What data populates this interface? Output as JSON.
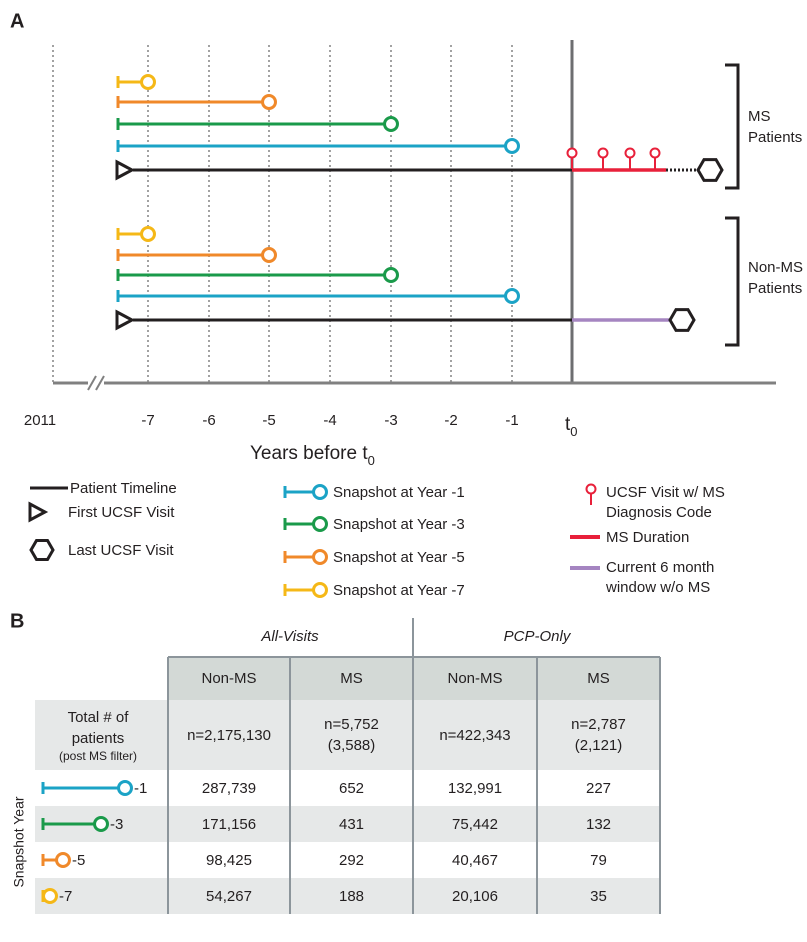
{
  "panel_a": {
    "label": "A",
    "ticks": [
      "2011",
      "-7",
      "-6",
      "-5",
      "-4",
      "-3",
      "-2",
      "-1"
    ],
    "t0_label": {
      "text": "t",
      "subscript": "0"
    },
    "axis_label": {
      "text": "Years before t",
      "subscript": "0"
    },
    "groups": [
      {
        "label": [
          "MS",
          "Patients"
        ]
      },
      {
        "label": [
          "Non-MS",
          "Patients"
        ]
      }
    ],
    "legend": {
      "patient_timeline": "Patient Timeline",
      "first_visit": "First UCSF Visit",
      "last_visit": "Last UCSF Visit",
      "snapshots": [
        "Snapshot at Year -1",
        "Snapshot at Year -3",
        "Snapshot at Year -5",
        "Snapshot at Year -7"
      ],
      "ms_visit": [
        "UCSF Visit w/ MS",
        "Diagnosis Code"
      ],
      "ms_duration": "MS Duration",
      "window": [
        "Current 6 month",
        "window w/o MS"
      ]
    }
  },
  "panel_b": {
    "label": "B",
    "group_headers": [
      "All-Visits",
      "PCP-Only"
    ],
    "column_headers": [
      "Non-MS",
      "MS",
      "Non-MS",
      "MS"
    ],
    "row_axis_label": "Snapshot Year",
    "total_row": {
      "label": [
        "Total # of",
        "patients",
        "(post MS filter)"
      ],
      "cells": [
        [
          "n=2,175,130"
        ],
        [
          "n=5,752",
          "(3,588)"
        ],
        [
          "n=422,343"
        ],
        [
          "n=2,787",
          "(2,121)"
        ]
      ]
    },
    "snapshot_rows": [
      {
        "year": "-1",
        "cells": [
          "287,739",
          "652",
          "132,991",
          "227"
        ]
      },
      {
        "year": "-3",
        "cells": [
          "171,156",
          "431",
          "75,442",
          "132"
        ]
      },
      {
        "year": "-5",
        "cells": [
          "98,425",
          "292",
          "40,467",
          "79"
        ]
      },
      {
        "year": "-7",
        "cells": [
          "54,267",
          "188",
          "20,106",
          "35"
        ]
      }
    ]
  }
}
